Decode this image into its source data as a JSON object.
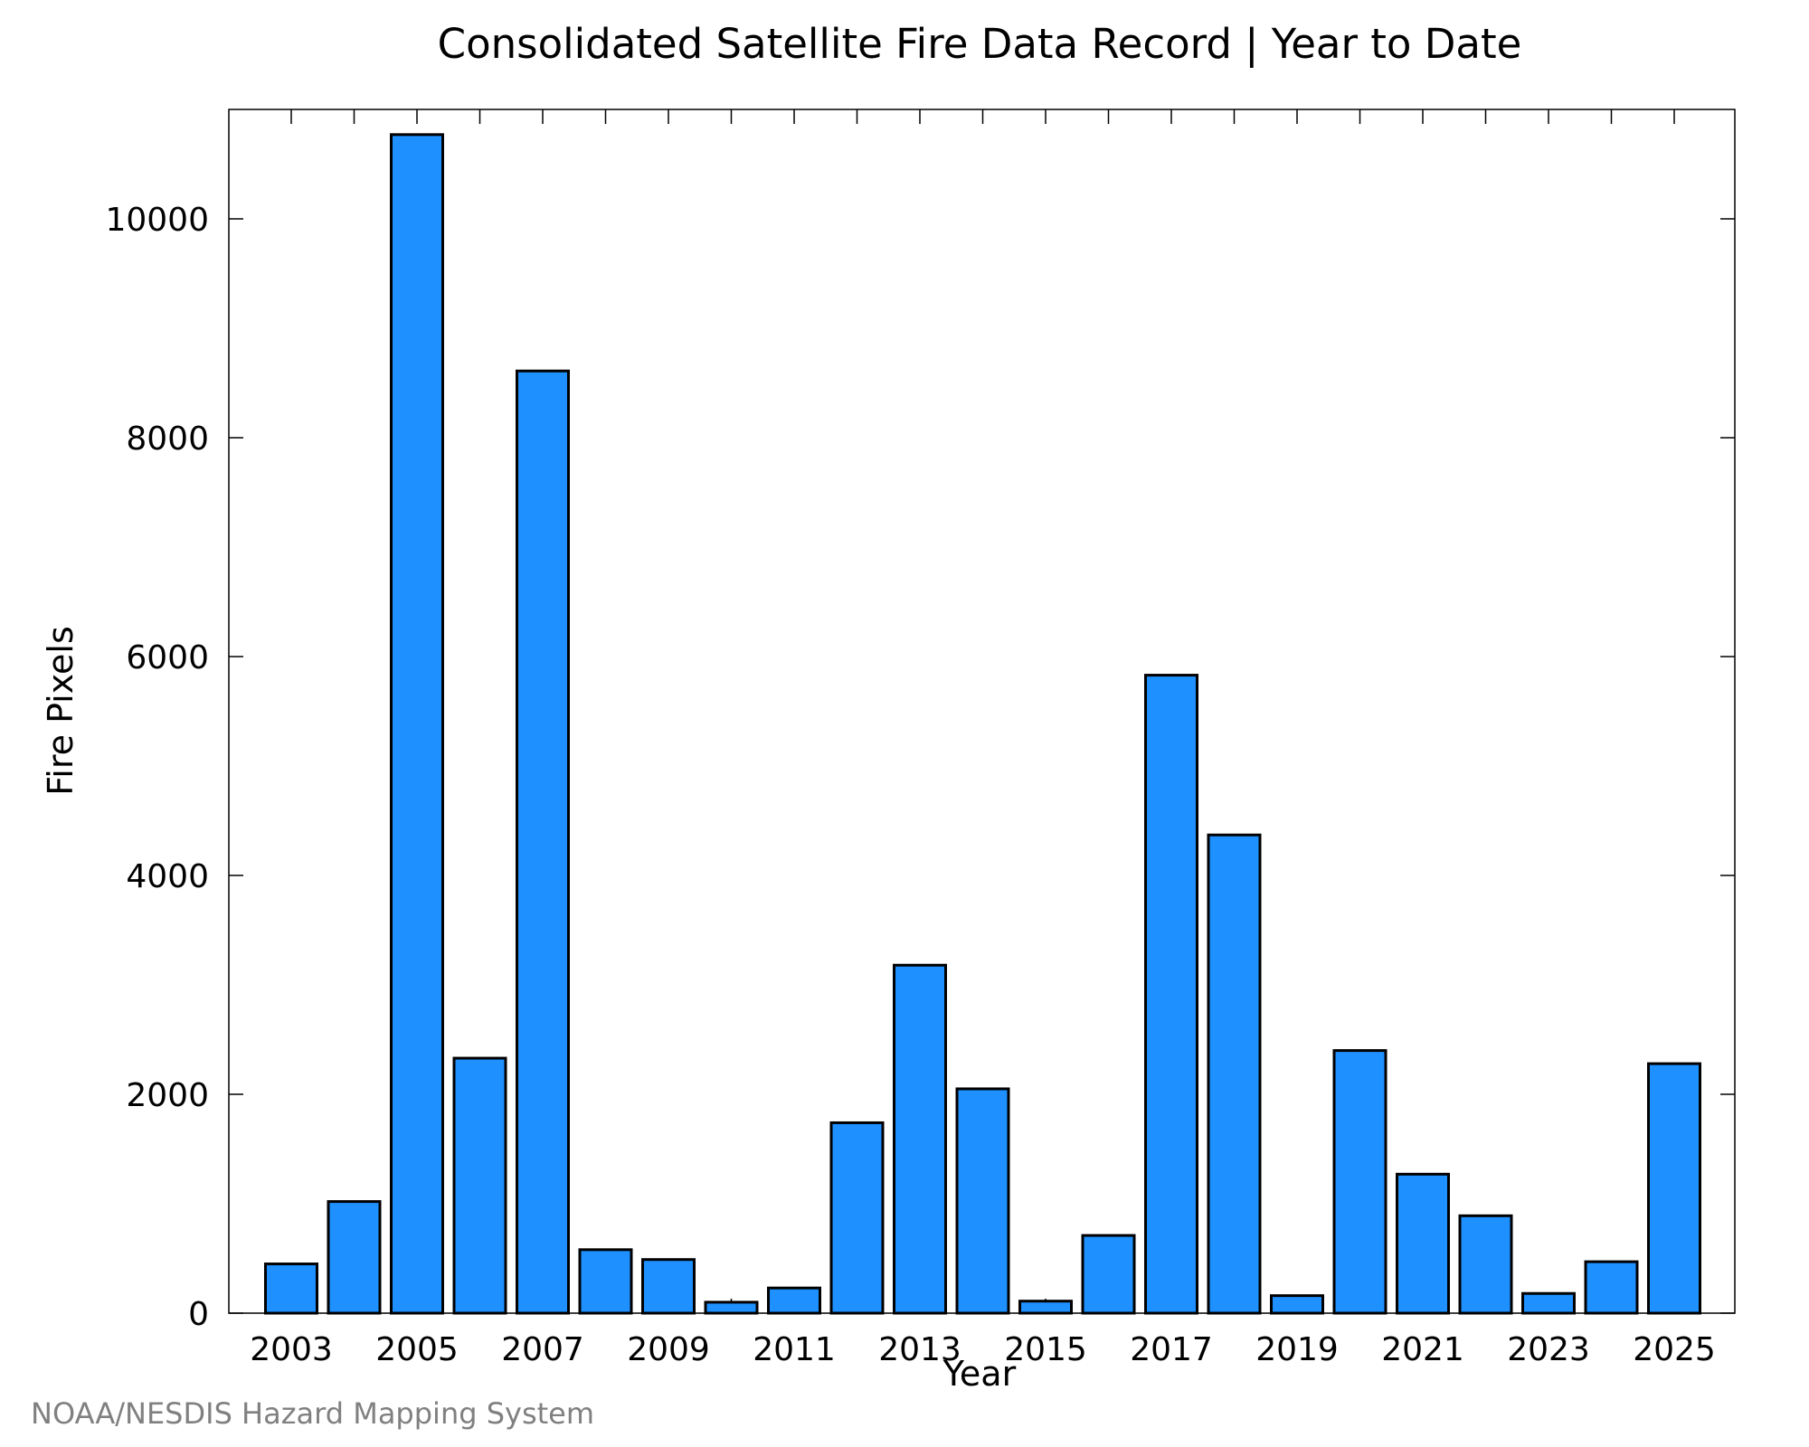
{
  "chart_data": {
    "type": "bar",
    "title": "Consolidated Satellite Fire Data Record | Year to Date",
    "xlabel": "Year",
    "ylabel": "Fire Pixels",
    "credit": "NOAA/NESDIS Hazard Mapping System",
    "categories": [
      "2003",
      "2004",
      "2005",
      "2006",
      "2007",
      "2008",
      "2009",
      "2010",
      "2011",
      "2012",
      "2013",
      "2014",
      "2015",
      "2016",
      "2017",
      "2018",
      "2019",
      "2020",
      "2021",
      "2022",
      "2023",
      "2024",
      "2025"
    ],
    "values": [
      450,
      1020,
      10770,
      2330,
      8610,
      580,
      490,
      100,
      230,
      1740,
      3180,
      2050,
      110,
      710,
      5830,
      4370,
      160,
      2400,
      1270,
      890,
      180,
      470,
      2280
    ],
    "x_tick_labels": [
      "2003",
      "2005",
      "2007",
      "2009",
      "2011",
      "2013",
      "2015",
      "2017",
      "2019",
      "2021",
      "2023",
      "2025"
    ],
    "y_tick_labels": [
      "0",
      "2000",
      "4000",
      "6000",
      "8000",
      "10000"
    ],
    "y_ticks": [
      0,
      2000,
      4000,
      6000,
      8000,
      10000
    ],
    "ylim": [
      0,
      11000
    ],
    "bar_color": "#1e90ff",
    "edge_color": "#000000",
    "grid": false,
    "legend": "none"
  }
}
